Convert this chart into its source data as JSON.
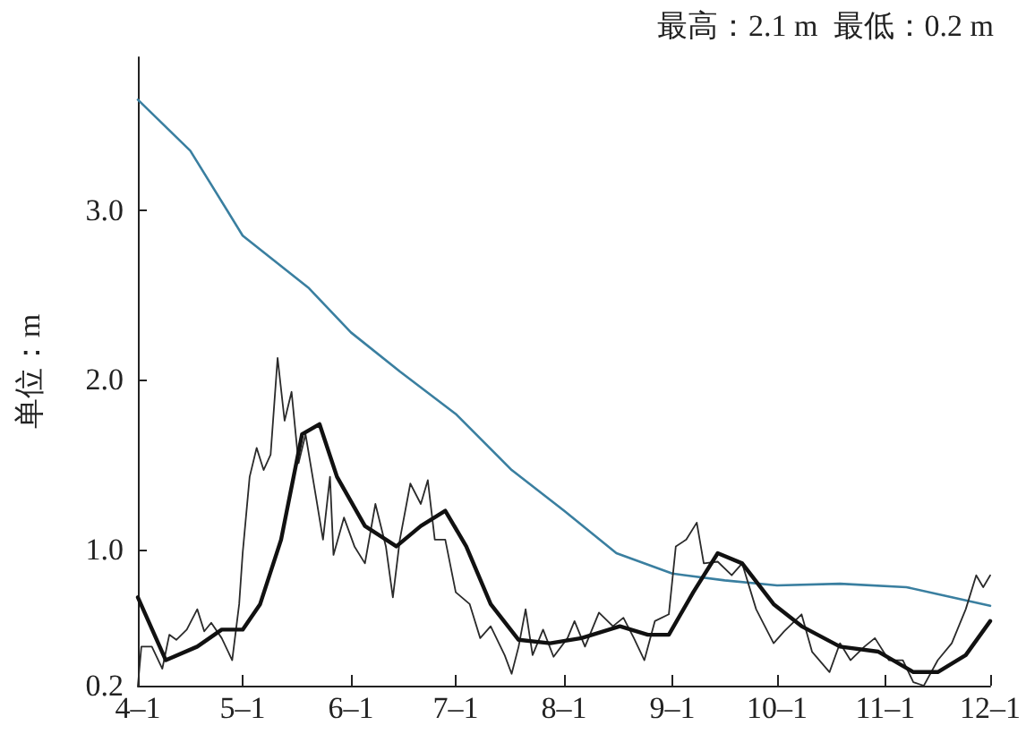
{
  "chart_data": {
    "type": "line",
    "ylabel": "单位：m",
    "annotations": [
      "最高：2.1 m  最低：0.2 m"
    ],
    "xlim": [
      "--04-01",
      "--12-01"
    ],
    "xticks": [
      {
        "value": "--04-01",
        "label": "4–1"
      },
      {
        "value": "--05-01",
        "label": "5–1"
      },
      {
        "value": "--06-01",
        "label": "6–1"
      },
      {
        "value": "--07-01",
        "label": "7–1"
      },
      {
        "value": "--08-01",
        "label": "8–1"
      },
      {
        "value": "--09-01",
        "label": "9–1"
      },
      {
        "value": "--10-01",
        "label": "10–1"
      },
      {
        "value": "--11-01",
        "label": "11–1"
      },
      {
        "value": "--12-01",
        "label": "12–1"
      }
    ],
    "ylim": [
      0.2,
      3.9
    ],
    "yticks": [
      0.2,
      {
        "value": 1,
        "label": "1.0"
      },
      {
        "value": 2,
        "label": "2.0"
      },
      {
        "value": 3,
        "label": "3.0"
      }
    ],
    "marker": "none",
    "line_style": "solid",
    "series": [
      {
        "color": "#3a7fa0",
        "x": [
          "--04-01",
          "--04-16",
          "--05-01",
          "--05-20",
          "--06-01",
          "--06-15",
          "--07-01",
          "--07-17",
          "--08-01",
          "--08-16",
          "--09-01",
          "--09-16",
          "--10-01",
          "--10-19",
          "--11-07",
          "--11-18",
          "--12-01"
        ],
        "values": [
          3.65,
          3.35,
          2.85,
          2.54,
          2.28,
          2.05,
          1.8,
          1.47,
          1.23,
          0.98,
          0.86,
          0.82,
          0.79,
          0.8,
          0.78,
          0.73,
          0.67
        ]
      },
      {
        "color": "#2a2a2a",
        "x": [
          "--04-01",
          "--04-02",
          "--04-05",
          "--04-08",
          "--04-10",
          "--04-12",
          "--04-15",
          "--04-18",
          "--04-20",
          "--04-22",
          "--04-25",
          "--04-28",
          "--04-30",
          "--05-01",
          "--05-03",
          "--05-05",
          "--05-07",
          "--05-09",
          "--05-11",
          "--05-13",
          "--05-15",
          "--05-17",
          "--05-19",
          "--05-22",
          "--05-24",
          "--05-26",
          "--05-27",
          "--05-30",
          "--06-02",
          "--06-05",
          "--06-08",
          "--06-11",
          "--06-13",
          "--06-15",
          "--06-18",
          "--06-21",
          "--06-23",
          "--06-25",
          "--06-28",
          "--07-01",
          "--07-05",
          "--07-08",
          "--07-11",
          "--07-15",
          "--07-17",
          "--07-19",
          "--07-21",
          "--07-23",
          "--07-26",
          "--07-29",
          "--08-02",
          "--08-04",
          "--08-07",
          "--08-11",
          "--08-15",
          "--08-18",
          "--08-21",
          "--08-24",
          "--08-27",
          "--08-31",
          "--09-02",
          "--09-05",
          "--09-08",
          "--09-10",
          "--09-14",
          "--09-18",
          "--09-21",
          "--09-25",
          "--09-27",
          "--09-30",
          "--10-03",
          "--10-08",
          "--10-11",
          "--10-16",
          "--10-19",
          "--10-22",
          "--10-26",
          "--10-29",
          "--11-02",
          "--11-06",
          "--11-09",
          "--11-12",
          "--11-16",
          "--11-20",
          "--11-24",
          "--11-27",
          "--11-29",
          "--12-01"
        ],
        "values": [
          0.2,
          0.43,
          0.43,
          0.3,
          0.5,
          0.47,
          0.53,
          0.65,
          0.52,
          0.57,
          0.48,
          0.35,
          0.68,
          0.98,
          1.43,
          1.6,
          1.47,
          1.56,
          2.13,
          1.76,
          1.93,
          1.51,
          1.68,
          1.31,
          1.06,
          1.43,
          0.97,
          1.19,
          1.02,
          0.92,
          1.27,
          1.02,
          0.72,
          1.06,
          1.39,
          1.27,
          1.41,
          1.06,
          1.06,
          0.75,
          0.68,
          0.48,
          0.55,
          0.38,
          0.27,
          0.43,
          0.65,
          0.38,
          0.53,
          0.37,
          0.48,
          0.58,
          0.43,
          0.63,
          0.55,
          0.6,
          0.48,
          0.35,
          0.58,
          0.62,
          1.02,
          1.06,
          1.16,
          0.92,
          0.93,
          0.85,
          0.92,
          0.65,
          0.57,
          0.45,
          0.52,
          0.62,
          0.4,
          0.28,
          0.45,
          0.35,
          0.43,
          0.48,
          0.35,
          0.35,
          0.22,
          0.2,
          0.35,
          0.45,
          0.65,
          0.85,
          0.78,
          0.85
        ]
      },
      {
        "color": "#111111",
        "x": [
          "--04-01",
          "--04-09",
          "--04-18",
          "--04-25",
          "--05-01",
          "--05-06",
          "--05-12",
          "--05-18",
          "--05-23",
          "--05-28",
          "--06-05",
          "--06-14",
          "--06-21",
          "--06-28",
          "--07-04",
          "--07-11",
          "--07-19",
          "--07-28",
          "--08-06",
          "--08-17",
          "--08-25",
          "--08-31",
          "--09-07",
          "--09-14",
          "--09-21",
          "--09-30",
          "--10-08",
          "--10-19",
          "--10-30",
          "--11-09",
          "--11-16",
          "--11-24",
          "--12-01"
        ],
        "values": [
          0.72,
          0.35,
          0.43,
          0.53,
          0.53,
          0.68,
          1.06,
          1.68,
          1.74,
          1.43,
          1.14,
          1.02,
          1.14,
          1.23,
          1.02,
          0.68,
          0.47,
          0.45,
          0.48,
          0.55,
          0.5,
          0.5,
          0.75,
          0.98,
          0.92,
          0.68,
          0.55,
          0.43,
          0.4,
          0.28,
          0.28,
          0.38,
          0.58
        ]
      }
    ]
  }
}
